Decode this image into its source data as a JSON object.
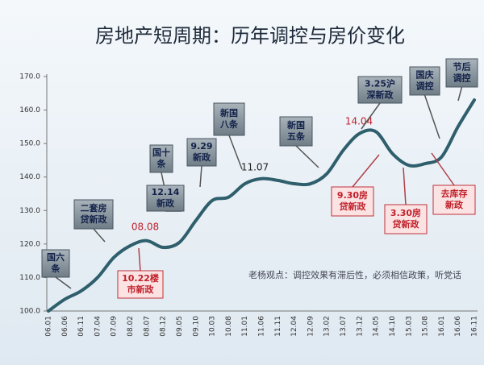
{
  "chart_data": {
    "type": "line",
    "title": "房地产短周期：历年调控与房价变化",
    "categories": [
      "06.01",
      "06.06",
      "06.11",
      "07.04",
      "07.09",
      "08.02",
      "08.07",
      "08.12",
      "09.05",
      "09.10",
      "10.03",
      "10.08",
      "11.01",
      "11.06",
      "11.11",
      "12.04",
      "12.09",
      "13.02",
      "13.07",
      "13.12",
      "14.05",
      "14.10",
      "15.03",
      "15.08",
      "16.01",
      "16.06",
      "16.11"
    ],
    "values": [
      100,
      103.5,
      106,
      110,
      116,
      119.5,
      121,
      119,
      120.5,
      127,
      133,
      134,
      138,
      139.5,
      139,
      138,
      138,
      141,
      148,
      153,
      153.5,
      147,
      143.5,
      144,
      146,
      155,
      163
    ],
    "color": "#2f5f6c",
    "ylim": [
      100,
      170
    ],
    "yticks": [
      {
        "value": 100,
        "label": "100.0"
      },
      {
        "value": 110,
        "label": "110.0"
      },
      {
        "value": 120,
        "label": "120.0"
      },
      {
        "value": 130,
        "label": "130.0"
      },
      {
        "value": 140,
        "label": "140.0"
      },
      {
        "value": 150,
        "label": "150.0"
      },
      {
        "value": 160,
        "label": "160.0"
      },
      {
        "value": 170,
        "label": "170.0"
      }
    ],
    "annotations": [
      {
        "text": [
          "国六",
          "条"
        ],
        "style": "gray"
      },
      {
        "text": [
          "二套房",
          "贷新政"
        ],
        "style": "gray"
      },
      {
        "text": [
          "08.08"
        ],
        "style": "plain-red"
      },
      {
        "text": [
          "10.22楼",
          "市新政"
        ],
        "style": "red"
      },
      {
        "text": [
          "国十",
          "条"
        ],
        "style": "gray"
      },
      {
        "text": [
          "12.14",
          "新政"
        ],
        "style": "gray"
      },
      {
        "text": [
          "9.29",
          "新政"
        ],
        "style": "gray"
      },
      {
        "text": [
          "新国",
          "八条"
        ],
        "style": "gray"
      },
      {
        "text": [
          "11.07"
        ],
        "style": "plain"
      },
      {
        "text": [
          "新国",
          "五条"
        ],
        "style": "gray"
      },
      {
        "text": [
          "14.04"
        ],
        "style": "plain-red"
      },
      {
        "text": [
          "3.25沪",
          "深新政"
        ],
        "style": "gray"
      },
      {
        "text": [
          "国庆",
          "调控"
        ],
        "style": "gray"
      },
      {
        "text": [
          "节后",
          "调控"
        ],
        "style": "gray"
      },
      {
        "text": [
          "9.30房",
          "贷新政"
        ],
        "style": "red"
      },
      {
        "text": [
          "3.30房",
          "贷新政"
        ],
        "style": "red"
      },
      {
        "text": [
          "去库存",
          "新政"
        ],
        "style": "red"
      }
    ],
    "note": "老杨观点：调控效果有滞后性，必须相信政策，听党话"
  }
}
